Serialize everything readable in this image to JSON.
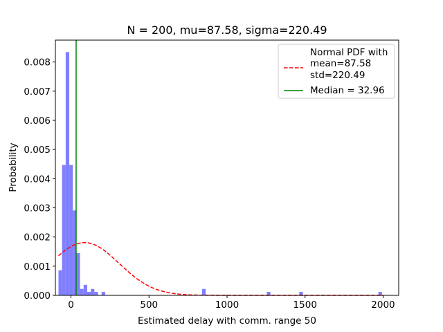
{
  "chart_data": {
    "type": "bar",
    "title": "N = 200, mu=87.58, sigma=220.49",
    "xlabel": "Estimated delay with comm. range 50",
    "ylabel": "Probability",
    "xlim": [
      -100,
      2100
    ],
    "ylim": [
      0,
      0.00875
    ],
    "x_ticks": [
      0,
      500,
      1000,
      1500,
      2000
    ],
    "x_tick_labels": [
      "0",
      "500",
      "1000",
      "1500",
      "2000"
    ],
    "y_ticks": [
      0,
      0.001,
      0.002,
      0.003,
      0.004,
      0.005,
      0.006,
      0.007,
      0.008
    ],
    "y_tick_labels": [
      "0.000",
      "0.001",
      "0.002",
      "0.003",
      "0.004",
      "0.005",
      "0.006",
      "0.007",
      "0.008"
    ],
    "grid": false,
    "legend_position": "upper right",
    "histogram": {
      "bin_width": 23,
      "color": "#8080ff",
      "bins": [
        {
          "x": -80,
          "value": 0.00086
        },
        {
          "x": -57,
          "value": 0.00447
        },
        {
          "x": -34,
          "value": 0.00834
        },
        {
          "x": -11,
          "value": 0.00447
        },
        {
          "x": 12,
          "value": 0.00291
        },
        {
          "x": 35,
          "value": 0.00145
        },
        {
          "x": 58,
          "value": 0.00022
        },
        {
          "x": 81,
          "value": 0.00036
        },
        {
          "x": 104,
          "value": 0.00012
        },
        {
          "x": 127,
          "value": 0.00022
        },
        {
          "x": 150,
          "value": 0.00012
        },
        {
          "x": 196,
          "value": 0.00012
        },
        {
          "x": 840,
          "value": 0.00022
        },
        {
          "x": 1255,
          "value": 0.00012
        },
        {
          "x": 1463,
          "value": 0.00012
        },
        {
          "x": 1970,
          "value": 0.00012
        }
      ]
    },
    "normal_pdf": {
      "mean": 87.58,
      "std": 220.49,
      "x_range": [
        -80,
        2000
      ],
      "color": "#ff0000",
      "style": "dashed"
    },
    "median": {
      "value": 32.96,
      "color": "#008000"
    },
    "legend": [
      {
        "label_lines": [
          "Normal PDF with",
          "mean=87.58",
          "std=220.49"
        ],
        "style": "dashed",
        "color": "#ff0000"
      },
      {
        "label_lines": [
          "Median = 32.96"
        ],
        "style": "solid",
        "color": "#008000"
      }
    ]
  }
}
